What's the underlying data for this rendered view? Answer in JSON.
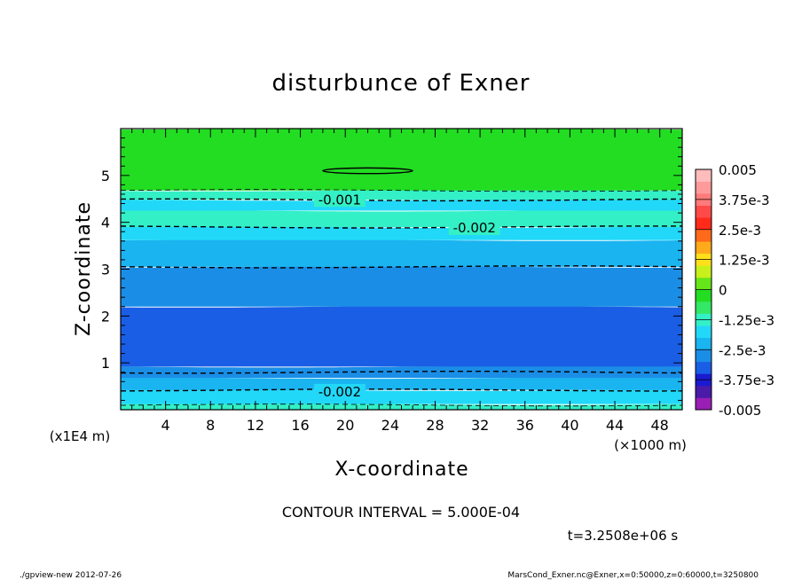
{
  "chart_data": {
    "type": "heatmap",
    "title": "disturbunce of Exner",
    "xlabel": "X-coordinate",
    "ylabel": "Z-coordinate",
    "x_unit": "(×1000 m)",
    "y_unit": "(x1E4 m)",
    "xlim": [
      0,
      50
    ],
    "ylim": [
      0,
      6
    ],
    "x_ticks": [
      4,
      8,
      12,
      16,
      20,
      24,
      28,
      32,
      36,
      40,
      44,
      48
    ],
    "y_ticks": [
      1,
      2,
      3,
      4,
      5
    ],
    "contour_labels": [
      {
        "text": "-0.001",
        "x": 19.5,
        "z": 4.5
      },
      {
        "text": "-0.002",
        "x": 31.5,
        "z": 3.9
      },
      {
        "text": "-0.002",
        "x": 19.5,
        "z": 0.4
      }
    ],
    "contour_interval_text": "CONTOUR INTERVAL = 5.000E-04",
    "time_text": "t=3.2508e+06 s",
    "colorbar": {
      "labels": [
        "0.005",
        "3.75e-3",
        "2.5e-3",
        "1.25e-3",
        "0",
        "-1.25e-3",
        "-2.5e-3",
        "-3.75e-3",
        "-0.005"
      ],
      "colors": [
        "#9a1fb4",
        "#4a1aa8",
        "#1a1ad0",
        "#1a5ee6",
        "#1a8ee6",
        "#1ab4f0",
        "#22d8f8",
        "#33f0c6",
        "#33e866",
        "#22dd22",
        "#66e61a",
        "#c8f01a",
        "#ffe01a",
        "#ffaa1a",
        "#ff6a1a",
        "#ff2a1a",
        "#ff4a4a",
        "#ff7a7a",
        "#ff9a9a",
        "#ffbcbc"
      ]
    },
    "bands": [
      {
        "z0": 0.0,
        "z1": 0.12,
        "color": "#33f0c6"
      },
      {
        "z0": 0.12,
        "z1": 0.42,
        "color": "#22d8f8"
      },
      {
        "z0": 0.42,
        "z1": 0.68,
        "color": "#1ab4f0"
      },
      {
        "z0": 0.68,
        "z1": 0.92,
        "color": "#1a8ee6"
      },
      {
        "z0": 0.92,
        "z1": 2.2,
        "color": "#1a5ee6"
      },
      {
        "z0": 2.2,
        "z1": 3.05,
        "color": "#1a8ee6"
      },
      {
        "z0": 3.05,
        "z1": 3.62,
        "color": "#1ab4f0"
      },
      {
        "z0": 3.62,
        "z1": 3.9,
        "color": "#22d8f8"
      },
      {
        "z0": 3.9,
        "z1": 4.25,
        "color": "#33f0c6"
      },
      {
        "z0": 4.25,
        "z1": 4.48,
        "color": "#22d8f8"
      },
      {
        "z0": 4.48,
        "z1": 4.68,
        "color": "#33f0c6"
      },
      {
        "z0": 4.68,
        "z1": 6.0,
        "color": "#22dd22"
      }
    ],
    "dashed_contours_z": [
      4.68,
      4.48,
      3.9,
      3.05,
      0.8,
      0.42,
      0.1
    ],
    "solid_closed_contour": {
      "x_center": 22,
      "z_center": 5.1,
      "x_half": 4,
      "z_half": 0.06
    }
  },
  "footer": {
    "left": "./gpview-new  2012-07-26",
    "right": "MarsCond_Exner.nc@Exner,x=0:50000,z=0:60000,t=3250800"
  }
}
